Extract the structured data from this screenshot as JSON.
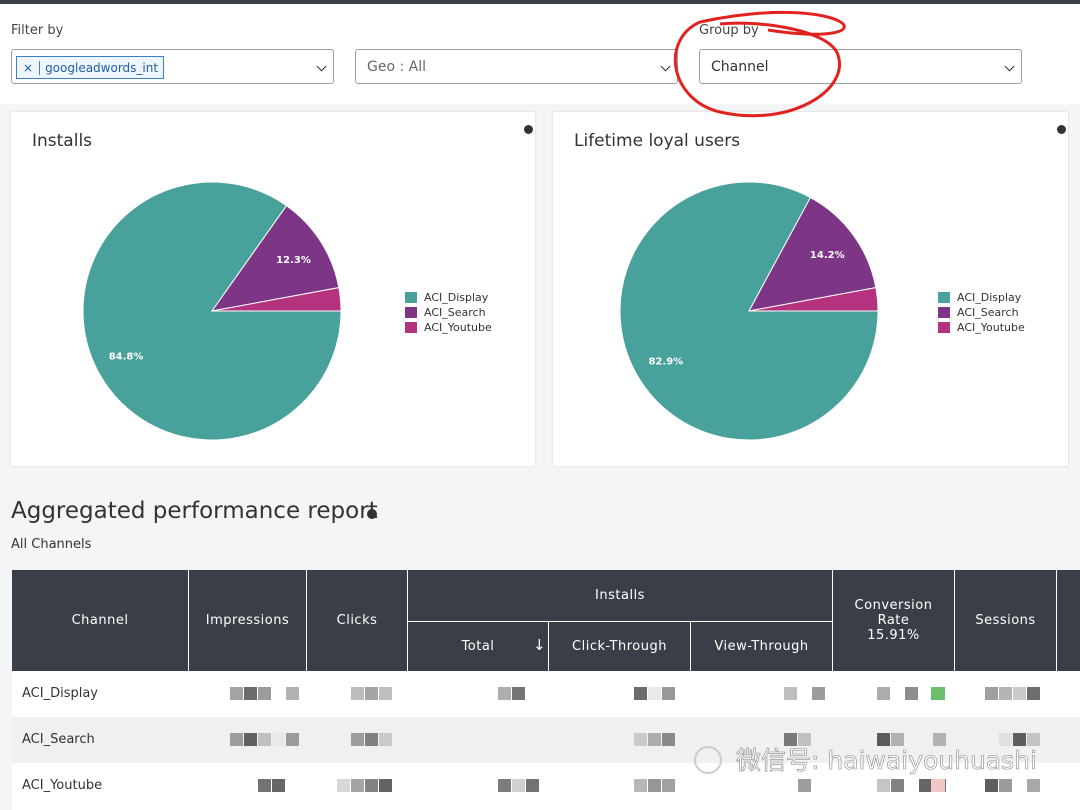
{
  "filter": {
    "label": "Filter by",
    "chip": "googleadwords_int",
    "geo": "Geo : All"
  },
  "group": {
    "label": "Group by",
    "value": "Channel"
  },
  "chart_data": [
    {
      "type": "pie",
      "title": "Installs",
      "categories": [
        "ACI_Display",
        "ACI_Search",
        "ACI_Youtube"
      ],
      "values": [
        84.8,
        12.3,
        2.9
      ],
      "value_labels": [
        "84.8%",
        "12.3%",
        null
      ],
      "colors": [
        "#48a19a",
        "#7d3586",
        "#b5327f"
      ]
    },
    {
      "type": "pie",
      "title": "Lifetime loyal users",
      "categories": [
        "ACI_Display",
        "ACI_Search",
        "ACI_Youtube"
      ],
      "values": [
        82.9,
        14.2,
        2.9
      ],
      "value_labels": [
        "82.9%",
        "14.2%",
        null
      ],
      "colors": [
        "#48a19a",
        "#7d3586",
        "#b5327f"
      ]
    }
  ],
  "report": {
    "title": "Aggregated performance report",
    "subtitle": "All Channels",
    "headers": {
      "channel": "Channel",
      "impressions": "Impressions",
      "clicks": "Clicks",
      "installs": "Installs",
      "total": "Total",
      "click_through": "Click-Through",
      "view_through": "View-Through",
      "conversion": "Conversion Rate",
      "conversion_value": "15.91%",
      "sessions": "Sessions"
    },
    "rows": [
      "ACI_Display",
      "ACI_Search",
      "ACI_Youtube"
    ]
  },
  "watermark": "微信号: haiwaiyouhuashi"
}
